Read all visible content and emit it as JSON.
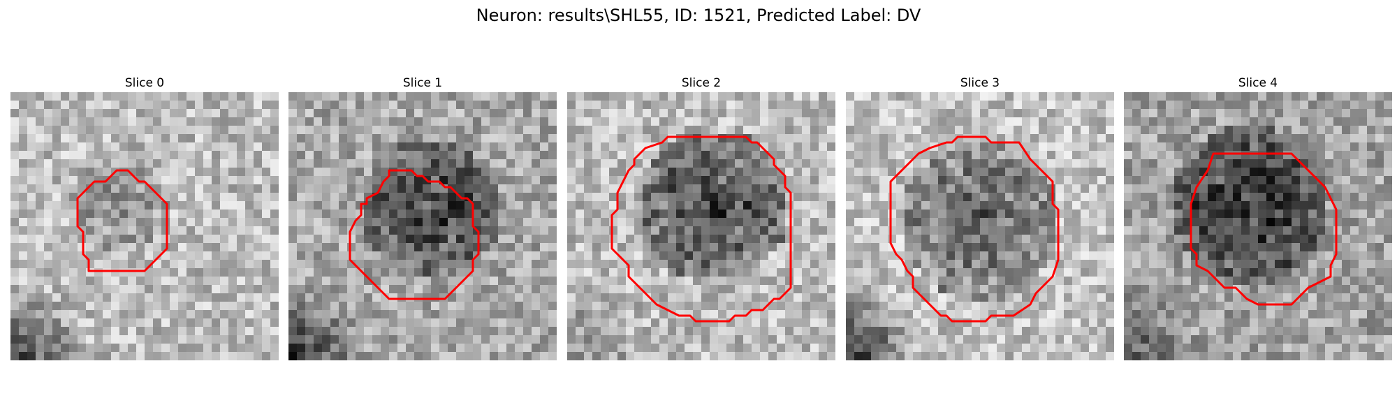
{
  "figure": {
    "title": "Neuron: results\\SHL55, ID: 1521, Predicted Label: DV"
  },
  "overlay_color": "#ff0000",
  "panels": [
    {
      "title": "Slice 0",
      "seed": 11,
      "blobs": [
        {
          "cx": 12.5,
          "cy": 13.0,
          "r": 6.0,
          "depth": 0.22
        }
      ],
      "bgShade": 0.74,
      "cornerDark": 0.5
    },
    {
      "title": "Slice 1",
      "seed": 23,
      "blobs": [
        {
          "cx": 16.5,
          "cy": 13.5,
          "r": 8.5,
          "depth": 0.48
        }
      ],
      "bgShade": 0.66,
      "cornerDark": 0.45
    },
    {
      "title": "Slice 2",
      "seed": 37,
      "blobs": [
        {
          "cx": 17.0,
          "cy": 13.0,
          "r": 9.0,
          "depth": 0.55
        }
      ],
      "bgShade": 0.74,
      "cornerDark": 0.2
    },
    {
      "title": "Slice 3",
      "seed": 41,
      "blobs": [
        {
          "cx": 15.5,
          "cy": 15.0,
          "r": 9.5,
          "depth": 0.42
        }
      ],
      "bgShade": 0.76,
      "cornerDark": 0.55
    },
    {
      "title": "Slice 4",
      "seed": 53,
      "blobs": [
        {
          "cx": 14.5,
          "cy": 13.0,
          "r": 9.5,
          "depth": 0.55
        }
      ],
      "bgShade": 0.64,
      "cornerDark": 0.3
    }
  ]
}
